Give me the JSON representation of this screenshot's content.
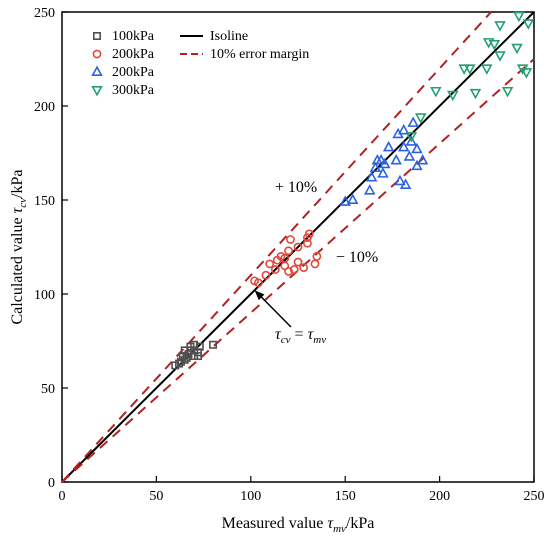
{
  "chart_data": {
    "type": "scatter",
    "xlabel": "Measured value τmv/kPa",
    "ylabel": "Calculated value τcv/kPa",
    "xlabel_parts": {
      "pre": "Measured value ",
      "sym": "τ",
      "sub": "mv",
      "post": "/kPa"
    },
    "ylabel_parts": {
      "pre": "Calculated value ",
      "sym": "τ",
      "sub": "cv",
      "post": "/kPa"
    },
    "xlim": [
      0,
      250
    ],
    "ylim": [
      0,
      250
    ],
    "xticks": [
      0,
      50,
      100,
      150,
      200,
      250
    ],
    "yticks": [
      0,
      50,
      100,
      150,
      200,
      250
    ],
    "grid": false,
    "legend_position": "top-left",
    "series": [
      {
        "name": "100kPa",
        "marker": "square",
        "color": "#505050",
        "points": [
          [
            60,
            62
          ],
          [
            62,
            63
          ],
          [
            63,
            64
          ],
          [
            65,
            65
          ],
          [
            64,
            67
          ],
          [
            66,
            66
          ],
          [
            67,
            68
          ],
          [
            65,
            70
          ],
          [
            68,
            70
          ],
          [
            68,
            72
          ],
          [
            70,
            67
          ],
          [
            70,
            70
          ],
          [
            70,
            73
          ],
          [
            72,
            67
          ],
          [
            72,
            69
          ],
          [
            73,
            72
          ],
          [
            80,
            73
          ]
        ]
      },
      {
        "name": "200kPa",
        "marker": "circle",
        "color": "#e0483a",
        "points": [
          [
            102,
            107
          ],
          [
            104,
            106
          ],
          [
            108,
            110
          ],
          [
            110,
            116
          ],
          [
            113,
            113
          ],
          [
            114,
            118
          ],
          [
            116,
            120
          ],
          [
            118,
            115
          ],
          [
            118,
            119
          ],
          [
            120,
            112
          ],
          [
            120,
            123
          ],
          [
            121,
            129
          ],
          [
            123,
            113
          ],
          [
            125,
            117
          ],
          [
            125,
            125
          ],
          [
            128,
            114
          ],
          [
            130,
            130
          ],
          [
            130,
            127
          ],
          [
            131,
            132
          ],
          [
            134,
            116
          ],
          [
            135,
            120
          ]
        ]
      },
      {
        "name": "200kPa",
        "marker": "triangle-up",
        "color": "#2a62e4",
        "points": [
          [
            150,
            149
          ],
          [
            154,
            150
          ],
          [
            163,
            155
          ],
          [
            164,
            162
          ],
          [
            166,
            167
          ],
          [
            167,
            171
          ],
          [
            169,
            171
          ],
          [
            170,
            164
          ],
          [
            171,
            169
          ],
          [
            173,
            178
          ],
          [
            177,
            171
          ],
          [
            178,
            185
          ],
          [
            179,
            160
          ],
          [
            181,
            187
          ],
          [
            181,
            178
          ],
          [
            182,
            158
          ],
          [
            184,
            173
          ],
          [
            185,
            181
          ],
          [
            186,
            191
          ],
          [
            188,
            168
          ],
          [
            188,
            177
          ],
          [
            191,
            171
          ]
        ]
      },
      {
        "name": "300kPa",
        "marker": "triangle-down",
        "color": "#22a06e",
        "points": [
          [
            185,
            184
          ],
          [
            190,
            194
          ],
          [
            198,
            208
          ],
          [
            207,
            206
          ],
          [
            213,
            220
          ],
          [
            216,
            220
          ],
          [
            219,
            207
          ],
          [
            225,
            220
          ],
          [
            226,
            234
          ],
          [
            229,
            233
          ],
          [
            232,
            227
          ],
          [
            232,
            243
          ],
          [
            236,
            208
          ],
          [
            241,
            231
          ],
          [
            242,
            248
          ],
          [
            244,
            220
          ],
          [
            246,
            218
          ],
          [
            247,
            244
          ]
        ]
      }
    ],
    "lines": [
      {
        "name": "Isoline",
        "style": "solid",
        "color": "#000000",
        "slope": 1.0
      },
      {
        "name": "10% error margin",
        "style": "dashed",
        "color": "#b22222",
        "slopes": [
          1.1,
          0.9
        ]
      }
    ],
    "annotations": {
      "plus": "+ 10%",
      "minus": "− 10%",
      "equation": {
        "lhs_sym": "τ",
        "lhs_sub": "cv",
        "eq": " = ",
        "rhs_sym": "τ",
        "rhs_sub": "mv"
      }
    }
  }
}
